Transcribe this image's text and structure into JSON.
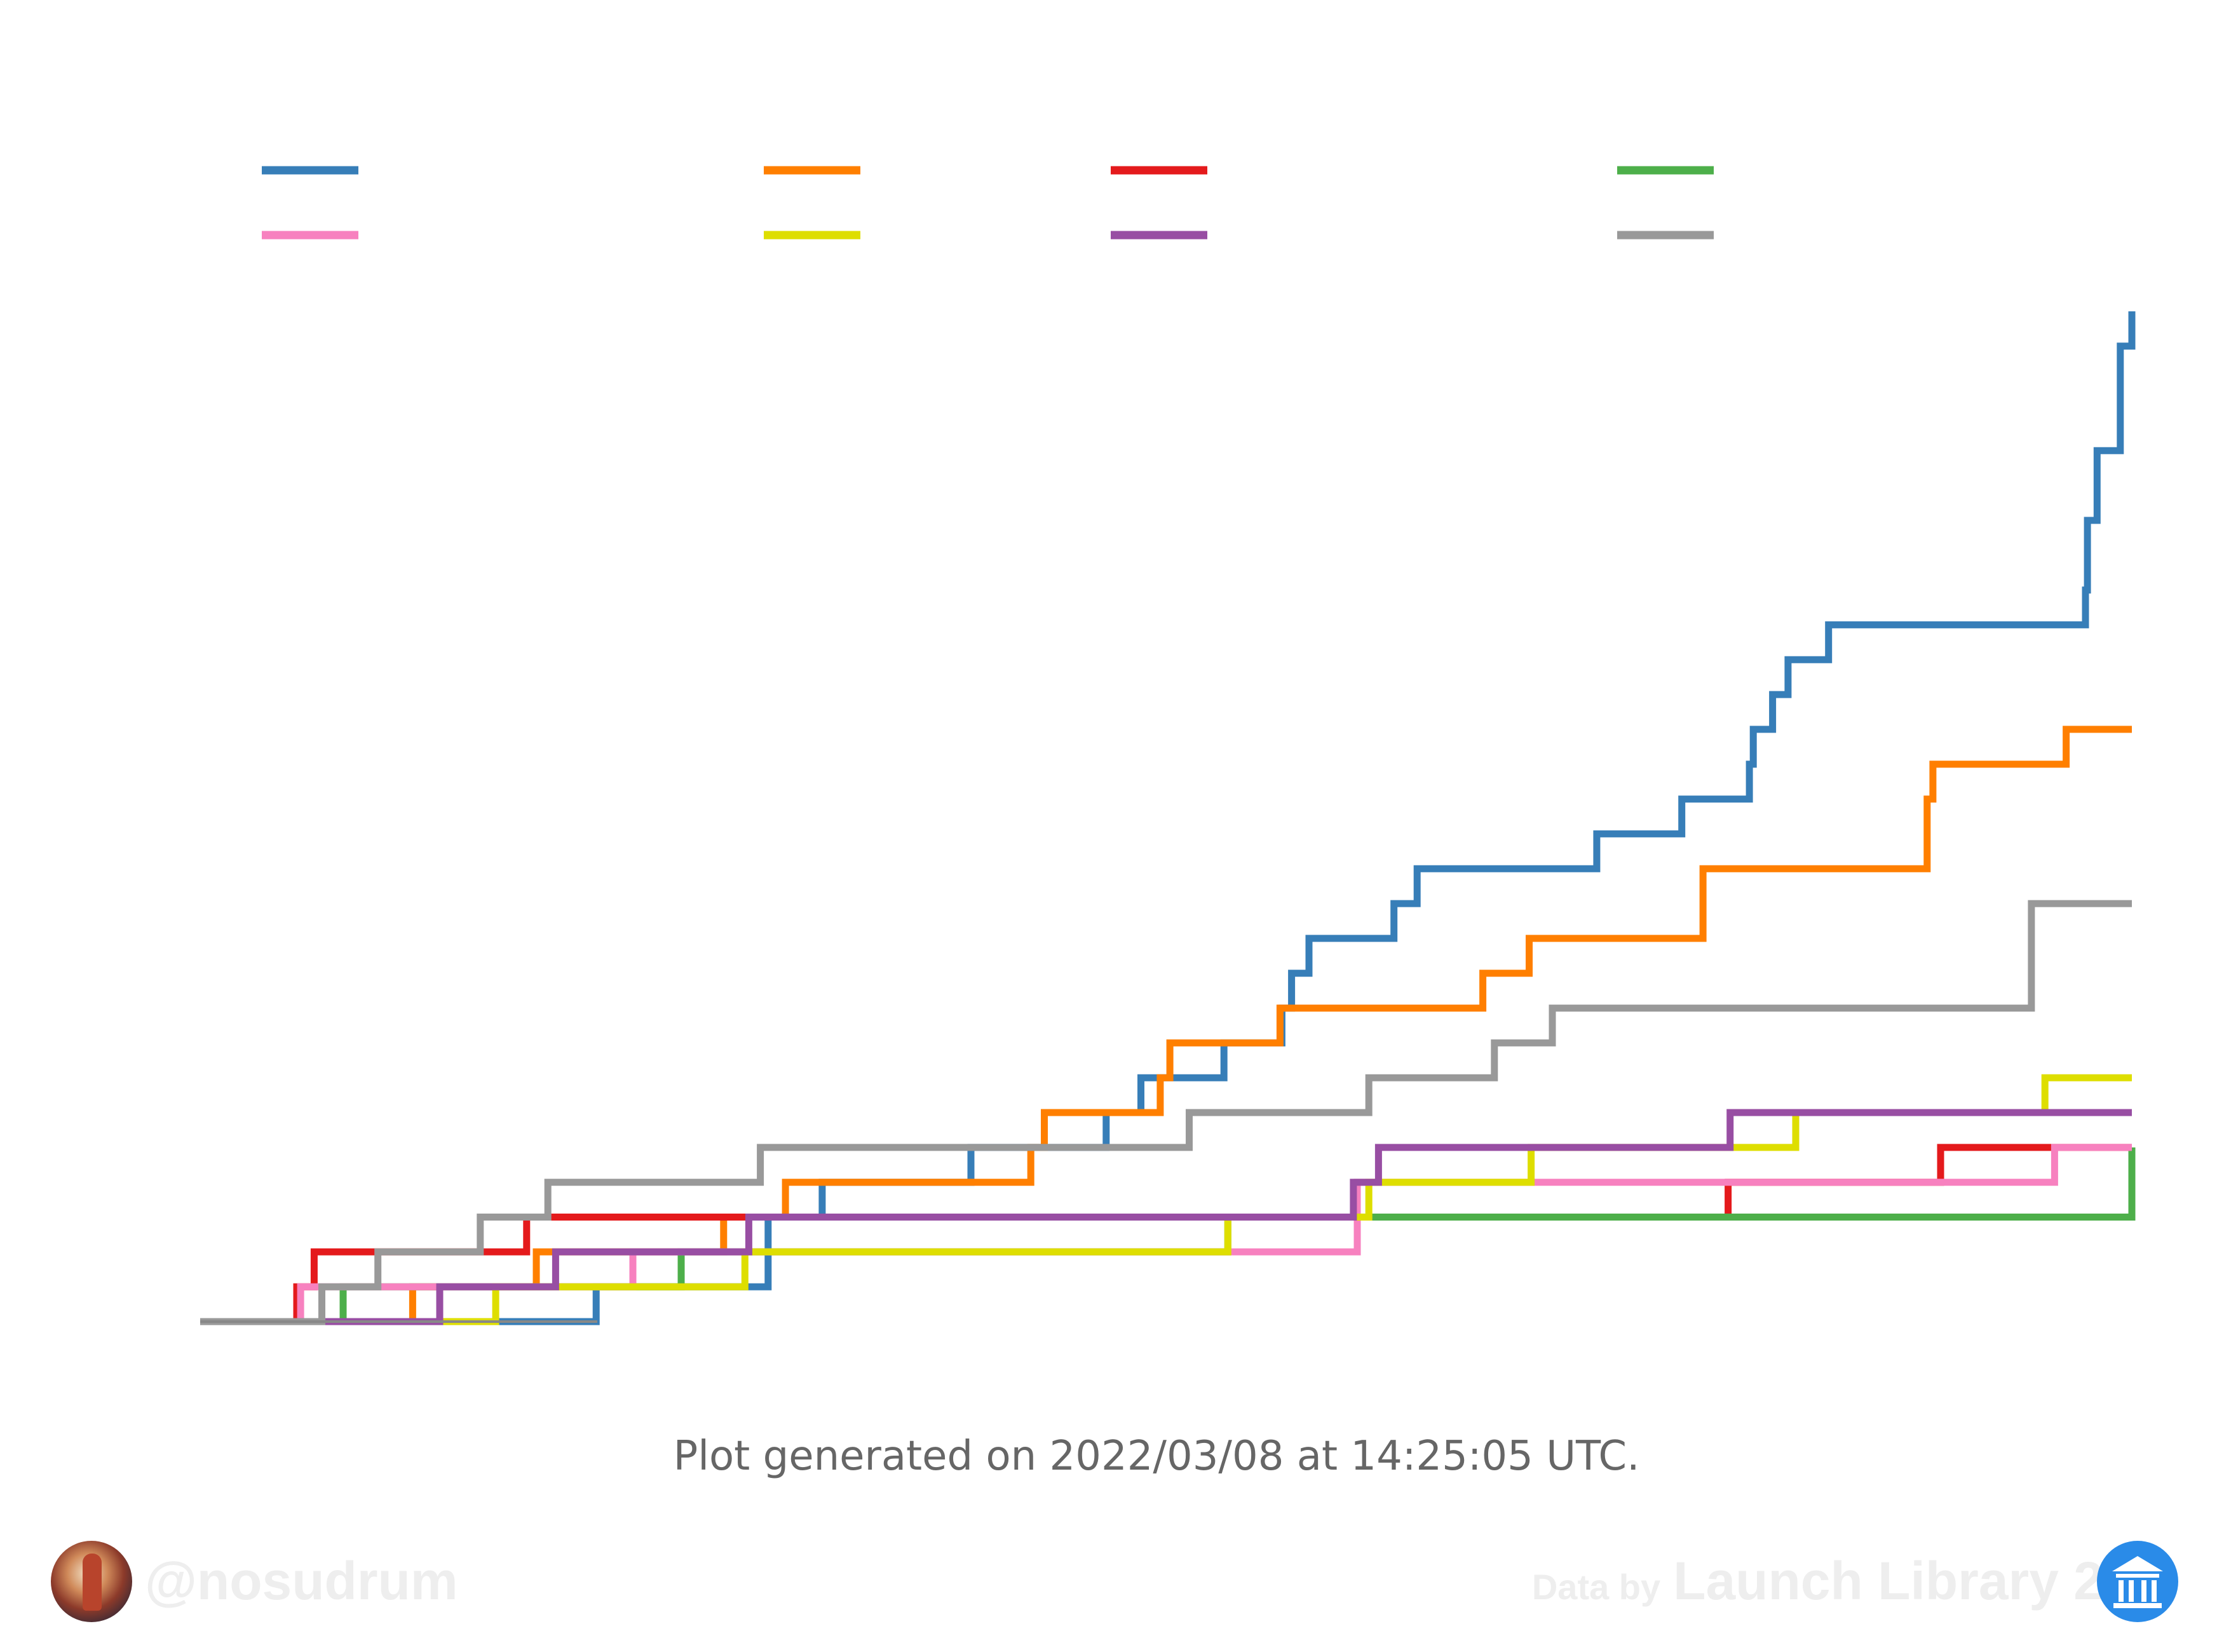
{
  "chart_data": {
    "type": "line",
    "step": "post",
    "title": "",
    "xlabel": "",
    "ylabel": "",
    "legend": {
      "placement": "top-left",
      "columns": 4
    },
    "grid": false,
    "x_range": [
      0,
      1000
    ],
    "y_range": [
      0,
      29
    ],
    "series": [
      {
        "color": "#377eb8",
        "points": [
          [
            0,
            0
          ],
          [
            205,
            1
          ],
          [
            294,
            3
          ],
          [
            322,
            4
          ],
          [
            399,
            5
          ],
          [
            469,
            6
          ],
          [
            487,
            7
          ],
          [
            530,
            8
          ],
          [
            560,
            9
          ],
          [
            565,
            10
          ],
          [
            574,
            11
          ],
          [
            618,
            12
          ],
          [
            630,
            13
          ],
          [
            723,
            14
          ],
          [
            767,
            15
          ],
          [
            802,
            16
          ],
          [
            804,
            17
          ],
          [
            814,
            18
          ],
          [
            822,
            19
          ],
          [
            843,
            20
          ],
          [
            976,
            21
          ],
          [
            977,
            23
          ],
          [
            982,
            25
          ],
          [
            994,
            28
          ],
          [
            1000,
            29
          ]
        ]
      },
      {
        "color": "#ff7f00",
        "points": [
          [
            0,
            0
          ],
          [
            110,
            1
          ],
          [
            174,
            2
          ],
          [
            271,
            3
          ],
          [
            303,
            4
          ],
          [
            430,
            5
          ],
          [
            437,
            6
          ],
          [
            497,
            7
          ],
          [
            502,
            8
          ],
          [
            559,
            9
          ],
          [
            664,
            10
          ],
          [
            688,
            11
          ],
          [
            778,
            13
          ],
          [
            894,
            15
          ],
          [
            897,
            16
          ],
          [
            899,
            16
          ],
          [
            966,
            17
          ],
          [
            1000,
            17
          ]
        ]
      },
      {
        "color": "#e41a1c",
        "points": [
          [
            0,
            0
          ],
          [
            50,
            1
          ],
          [
            59,
            2
          ],
          [
            169,
            3
          ],
          [
            562,
            3
          ],
          [
            791,
            4
          ],
          [
            901,
            5
          ],
          [
            1000,
            5
          ]
        ]
      },
      {
        "color": "#4daf4a",
        "points": [
          [
            0,
            0
          ],
          [
            74,
            1
          ],
          [
            249,
            2
          ],
          [
            532,
            3
          ],
          [
            1000,
            5
          ]
        ]
      },
      {
        "color": "#f781bf",
        "points": [
          [
            0,
            0
          ],
          [
            52,
            1
          ],
          [
            224,
            2
          ],
          [
            599,
            4
          ],
          [
            960,
            5
          ],
          [
            1000,
            5
          ]
        ]
      },
      {
        "color": "#dede00",
        "points": [
          [
            0,
            0
          ],
          [
            153,
            1
          ],
          [
            282,
            2
          ],
          [
            532,
            3
          ],
          [
            605,
            4
          ],
          [
            689,
            5
          ],
          [
            826,
            6
          ],
          [
            955,
            7
          ],
          [
            1000,
            7
          ]
        ]
      },
      {
        "color": "#984ea3",
        "points": [
          [
            0,
            0
          ],
          [
            124,
            1
          ],
          [
            184,
            2
          ],
          [
            284,
            3
          ],
          [
            520,
            3
          ],
          [
            597,
            4
          ],
          [
            610,
            5
          ],
          [
            792,
            6
          ],
          [
            1000,
            6
          ]
        ]
      },
      {
        "color": "#999999",
        "points": [
          [
            0,
            0
          ],
          [
            63,
            1
          ],
          [
            92,
            2
          ],
          [
            145,
            3
          ],
          [
            180,
            4
          ],
          [
            290,
            5
          ],
          [
            512,
            6
          ],
          [
            605,
            7
          ],
          [
            670,
            8
          ],
          [
            700,
            9
          ],
          [
            948,
            12
          ],
          [
            1000,
            12
          ]
        ]
      }
    ]
  },
  "footer_note": "Plot generated on 2022/03/08 at 14:25:05 UTC.",
  "watermark": {
    "handle": "@nosudrum",
    "credit_prefix": "Data by",
    "credit_source": "Launch Library 2"
  }
}
